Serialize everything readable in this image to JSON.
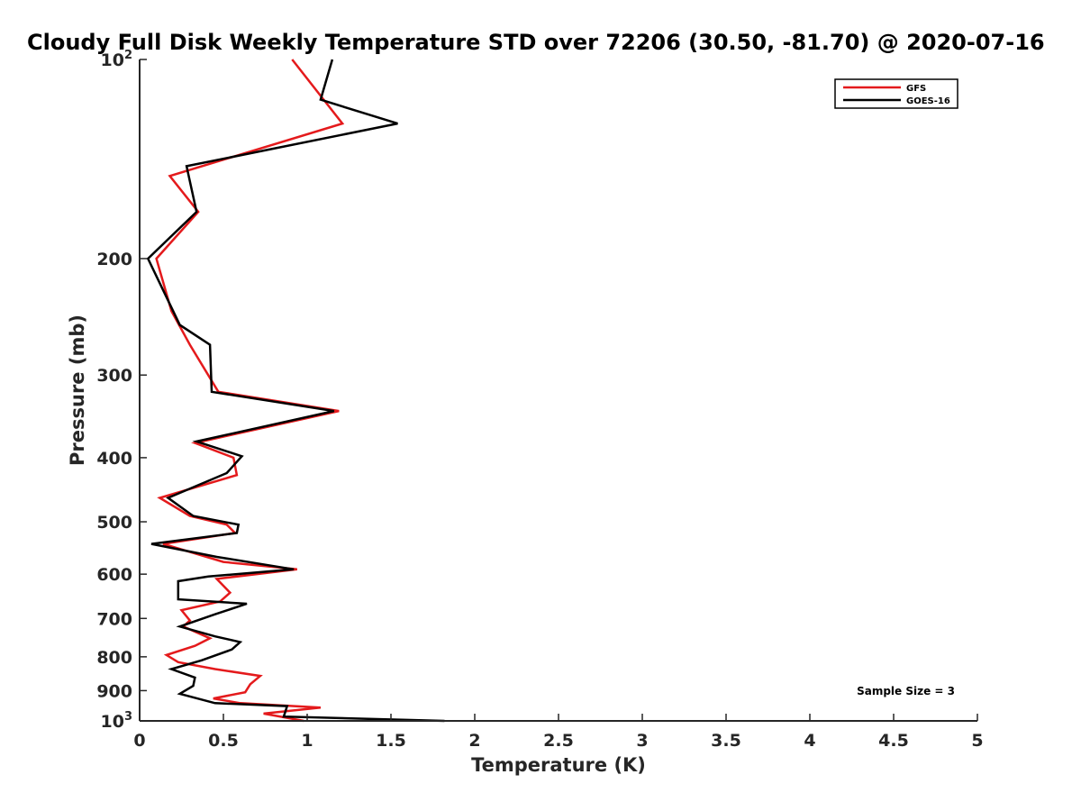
{
  "chart_data": {
    "type": "line",
    "title": "Cloudy Full Disk Weekly Temperature STD over 72206 (30.50, -81.70) @ 2020-07-16",
    "xlabel": "Temperature (K)",
    "ylabel": "Pressure (mb)",
    "xlim": [
      0,
      5
    ],
    "ylim": [
      100,
      1000
    ],
    "yscale": "log",
    "y_reversed": true,
    "x_ticks": [
      "0",
      "0.5",
      "1",
      "1.5",
      "2",
      "2.5",
      "3",
      "3.5",
      "4",
      "4.5",
      "5"
    ],
    "x_tick_values": [
      0,
      0.5,
      1,
      1.5,
      2,
      2.5,
      3,
      3.5,
      4,
      4.5,
      5
    ],
    "y_ticks": [
      {
        "value": 100,
        "base": "10",
        "exp": "2"
      },
      {
        "value": 200,
        "label": "200"
      },
      {
        "value": 300,
        "label": "300"
      },
      {
        "value": 400,
        "label": "400"
      },
      {
        "value": 500,
        "label": "500"
      },
      {
        "value": 600,
        "label": "600"
      },
      {
        "value": 700,
        "label": "700"
      },
      {
        "value": 800,
        "label": "800"
      },
      {
        "value": 900,
        "label": "900"
      },
      {
        "value": 1000,
        "base": "10",
        "exp": "3"
      }
    ],
    "legend_position": "top-right",
    "annotation": "Sample Size = 3",
    "series": [
      {
        "name": "GFS",
        "color": "#e41a1c",
        "points": [
          [
            0.91,
            100
          ],
          [
            1.21,
            125
          ],
          [
            0.18,
            150
          ],
          [
            0.35,
            170
          ],
          [
            0.1,
            200
          ],
          [
            0.19,
            240
          ],
          [
            0.3,
            270
          ],
          [
            0.47,
            318
          ],
          [
            1.19,
            340
          ],
          [
            0.33,
            380
          ],
          [
            0.56,
            400
          ],
          [
            0.58,
            425
          ],
          [
            0.12,
            460
          ],
          [
            0.3,
            490
          ],
          [
            0.52,
            505
          ],
          [
            0.57,
            520
          ],
          [
            0.14,
            540
          ],
          [
            0.5,
            575
          ],
          [
            0.94,
            590
          ],
          [
            0.46,
            610
          ],
          [
            0.54,
            640
          ],
          [
            0.48,
            660
          ],
          [
            0.25,
            680
          ],
          [
            0.3,
            705
          ],
          [
            0.26,
            720
          ],
          [
            0.42,
            750
          ],
          [
            0.33,
            770
          ],
          [
            0.16,
            795
          ],
          [
            0.23,
            815
          ],
          [
            0.45,
            835
          ],
          [
            0.72,
            855
          ],
          [
            0.66,
            880
          ],
          [
            0.63,
            905
          ],
          [
            0.44,
            925
          ],
          [
            0.6,
            940
          ],
          [
            1.08,
            955
          ],
          [
            0.74,
            975
          ],
          [
            0.98,
            1000
          ]
        ]
      },
      {
        "name": "GOES-16",
        "color": "#000000",
        "points": [
          [
            1.15,
            100
          ],
          [
            1.08,
            115
          ],
          [
            1.54,
            125
          ],
          [
            0.28,
            145
          ],
          [
            0.34,
            170
          ],
          [
            0.05,
            200
          ],
          [
            0.24,
            252
          ],
          [
            0.42,
            270
          ],
          [
            0.43,
            318
          ],
          [
            1.16,
            340
          ],
          [
            0.34,
            378
          ],
          [
            0.61,
            398
          ],
          [
            0.52,
            422
          ],
          [
            0.17,
            460
          ],
          [
            0.32,
            490
          ],
          [
            0.59,
            505
          ],
          [
            0.58,
            520
          ],
          [
            0.07,
            540
          ],
          [
            0.46,
            565
          ],
          [
            0.92,
            590
          ],
          [
            0.41,
            605
          ],
          [
            0.23,
            615
          ],
          [
            0.23,
            655
          ],
          [
            0.64,
            665
          ],
          [
            0.45,
            690
          ],
          [
            0.24,
            720
          ],
          [
            0.45,
            745
          ],
          [
            0.6,
            760
          ],
          [
            0.55,
            780
          ],
          [
            0.37,
            810
          ],
          [
            0.19,
            835
          ],
          [
            0.33,
            860
          ],
          [
            0.32,
            885
          ],
          [
            0.24,
            910
          ],
          [
            0.45,
            940
          ],
          [
            0.88,
            950
          ],
          [
            0.86,
            985
          ],
          [
            1.82,
            1000
          ]
        ]
      }
    ]
  }
}
